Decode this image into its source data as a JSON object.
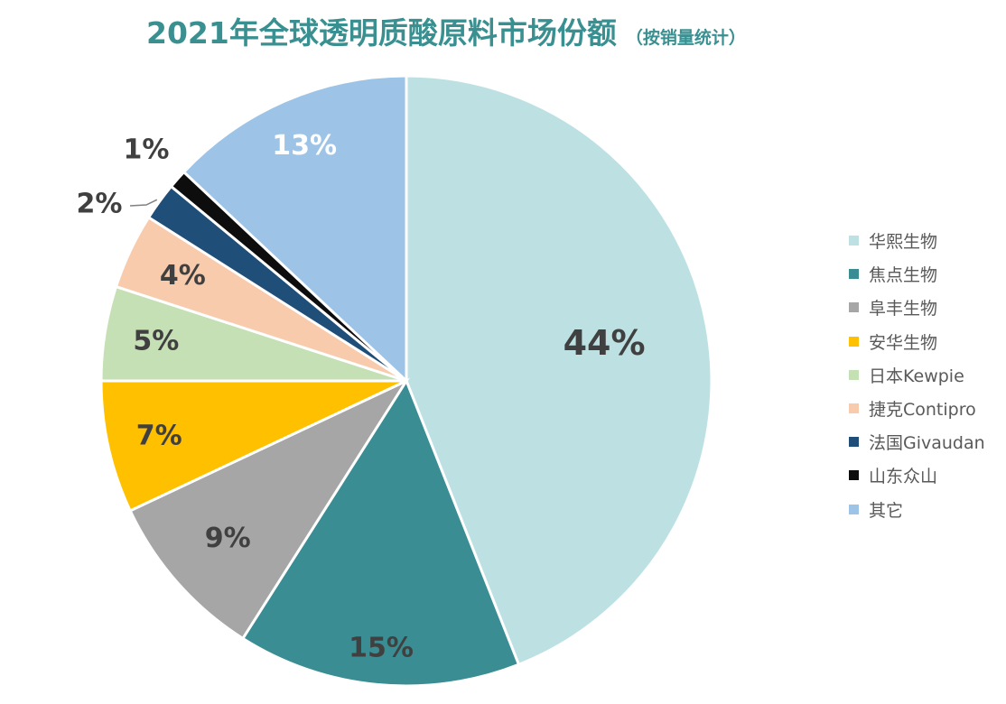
{
  "title": "2021年全球透明质酸原料市场份额",
  "subtitle": "（按销量统计）",
  "chart_data": {
    "type": "pie",
    "title": "2021年全球透明质酸原料市场份额",
    "subtitle": "（按销量统计）",
    "legend_position": "right",
    "start_angle_deg": 0,
    "direction": "clockwise",
    "slices": [
      {
        "label": "华熙生物",
        "value": 44,
        "display": "44%",
        "color": "#BDE1E3"
      },
      {
        "label": "焦点生物",
        "value": 15,
        "display": "15%",
        "color": "#3A8D93"
      },
      {
        "label": "阜丰生物",
        "value": 9,
        "display": "9%",
        "color": "#A6A6A6"
      },
      {
        "label": "安华生物",
        "value": 7,
        "display": "7%",
        "color": "#FFC000"
      },
      {
        "label": "日本Kewpie",
        "value": 5,
        "display": "5%",
        "color": "#C5E0B4"
      },
      {
        "label": "捷克Contipro",
        "value": 4,
        "display": "4%",
        "color": "#F8CBAD"
      },
      {
        "label": "法国Givaudan",
        "value": 2,
        "display": "2%",
        "color": "#1F4E79"
      },
      {
        "label": "山东众山",
        "value": 1,
        "display": "1%",
        "color": "#0D0D0D"
      },
      {
        "label": "其它",
        "value": 13,
        "display": "13%",
        "color": "#9DC3E6"
      }
    ]
  }
}
